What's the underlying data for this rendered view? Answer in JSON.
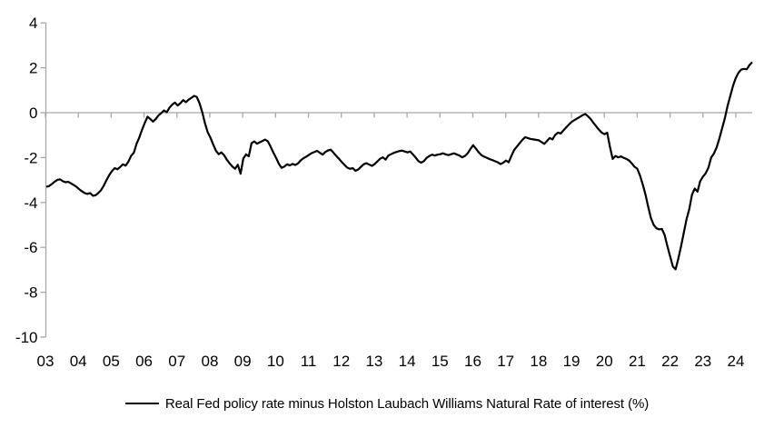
{
  "legend": {
    "label": "Real Fed policy rate minus Holston Laubach Williams Natural Rate of interest (%)"
  },
  "chart_data": {
    "type": "line",
    "title": "",
    "xlabel": "",
    "ylabel": "",
    "ylim": [
      -10,
      4
    ],
    "y_tick_step": 2,
    "grid": "zero-gridline-only",
    "legend_position": "bottom-center",
    "colors": {
      "series": "#000000",
      "axis": "#a6a6a6",
      "text": "#000000",
      "background": "#ffffff"
    },
    "x_tick_labels": [
      "03",
      "04",
      "05",
      "06",
      "07",
      "08",
      "09",
      "10",
      "11",
      "12",
      "13",
      "14",
      "15",
      "16",
      "17",
      "18",
      "19",
      "20",
      "21",
      "22",
      "23",
      "24"
    ],
    "y_tick_labels": [
      "4",
      "2",
      "0",
      "-2",
      "-4",
      "-6",
      "-8",
      "-10"
    ],
    "series": [
      {
        "name": "Real Fed policy rate minus Holston Laubach Williams Natural Rate of interest (%)",
        "start": "2003-01",
        "frequency": "monthly",
        "values": [
          -3.3,
          -3.27,
          -3.18,
          -3.08,
          -3.0,
          -2.97,
          -3.05,
          -3.1,
          -3.08,
          -3.15,
          -3.22,
          -3.3,
          -3.41,
          -3.5,
          -3.58,
          -3.62,
          -3.58,
          -3.7,
          -3.68,
          -3.58,
          -3.45,
          -3.25,
          -3.0,
          -2.78,
          -2.6,
          -2.47,
          -2.52,
          -2.42,
          -2.3,
          -2.36,
          -2.18,
          -1.92,
          -1.78,
          -1.38,
          -1.1,
          -0.75,
          -0.45,
          -0.18,
          -0.28,
          -0.4,
          -0.28,
          -0.12,
          -0.02,
          0.1,
          0.02,
          0.22,
          0.36,
          0.45,
          0.32,
          0.42,
          0.56,
          0.47,
          0.58,
          0.66,
          0.75,
          0.7,
          0.42,
          0.02,
          -0.48,
          -0.88,
          -1.12,
          -1.42,
          -1.7,
          -1.85,
          -1.77,
          -1.9,
          -2.1,
          -2.26,
          -2.4,
          -2.5,
          -2.32,
          -2.72,
          -2.04,
          -1.86,
          -1.94,
          -1.36,
          -1.28,
          -1.38,
          -1.32,
          -1.26,
          -1.2,
          -1.28,
          -1.52,
          -1.78,
          -2.02,
          -2.28,
          -2.46,
          -2.4,
          -2.3,
          -2.35,
          -2.28,
          -2.33,
          -2.26,
          -2.12,
          -2.03,
          -1.96,
          -1.88,
          -1.8,
          -1.75,
          -1.7,
          -1.79,
          -1.87,
          -1.75,
          -1.68,
          -1.65,
          -1.79,
          -1.93,
          -2.06,
          -2.2,
          -2.33,
          -2.45,
          -2.5,
          -2.47,
          -2.59,
          -2.53,
          -2.41,
          -2.3,
          -2.25,
          -2.31,
          -2.37,
          -2.29,
          -2.17,
          -2.05,
          -1.99,
          -2.09,
          -1.91,
          -1.85,
          -1.79,
          -1.75,
          -1.71,
          -1.69,
          -1.73,
          -1.77,
          -1.73,
          -1.86,
          -2.0,
          -2.16,
          -2.23,
          -2.16,
          -2.01,
          -1.93,
          -1.87,
          -1.91,
          -1.87,
          -1.85,
          -1.81,
          -1.86,
          -1.89,
          -1.85,
          -1.81,
          -1.86,
          -1.91,
          -1.99,
          -1.93,
          -1.81,
          -1.62,
          -1.45,
          -1.6,
          -1.76,
          -1.89,
          -1.96,
          -2.01,
          -2.07,
          -2.11,
          -2.16,
          -2.21,
          -2.29,
          -2.23,
          -2.13,
          -2.21,
          -1.92,
          -1.66,
          -1.51,
          -1.36,
          -1.21,
          -1.09,
          -1.13,
          -1.17,
          -1.19,
          -1.21,
          -1.23,
          -1.31,
          -1.39,
          -1.26,
          -1.13,
          -1.19,
          -0.99,
          -0.89,
          -0.93,
          -0.79,
          -0.66,
          -0.53,
          -0.41,
          -0.33,
          -0.26,
          -0.19,
          -0.11,
          -0.06,
          -0.16,
          -0.29,
          -0.46,
          -0.61,
          -0.76,
          -0.89,
          -0.96,
          -0.89,
          -1.52,
          -2.06,
          -1.93,
          -1.99,
          -1.95,
          -2.01,
          -2.06,
          -2.13,
          -2.26,
          -2.41,
          -2.5,
          -2.8,
          -3.2,
          -3.65,
          -4.2,
          -4.7,
          -5.0,
          -5.15,
          -5.2,
          -5.18,
          -5.45,
          -5.95,
          -6.4,
          -6.85,
          -6.98,
          -6.5,
          -5.95,
          -5.35,
          -4.75,
          -4.3,
          -3.65,
          -3.38,
          -3.52,
          -3.05,
          -2.85,
          -2.7,
          -2.45,
          -2.0,
          -1.82,
          -1.55,
          -1.15,
          -0.7,
          -0.25,
          0.3,
          0.75,
          1.2,
          1.55,
          1.78,
          1.92,
          1.95,
          1.93,
          2.12,
          2.25
        ]
      }
    ]
  }
}
